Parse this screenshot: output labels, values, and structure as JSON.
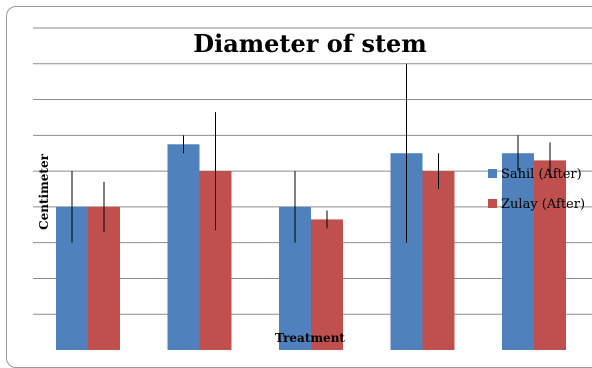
{
  "chart_data": {
    "type": "bar",
    "title": "Diameter of stem",
    "xlabel": "Treatment",
    "ylabel": "Centimeter",
    "categories": [
      "",
      "",
      "",
      "",
      ""
    ],
    "ylim": [
      0,
      9
    ],
    "gridlines": 9,
    "legend_position": "right",
    "series": [
      {
        "name": "Sahil (After)",
        "color": "#4f81bd",
        "values": [
          4.0,
          5.75,
          4.0,
          5.5,
          5.5
        ],
        "error": [
          1.0,
          0.25,
          1.0,
          2.5,
          0.5
        ]
      },
      {
        "name": "Zulay (After)",
        "color": "#c0504d",
        "values": [
          4.0,
          5.0,
          3.65,
          5.0,
          5.3
        ],
        "error": [
          0.7,
          1.65,
          0.25,
          0.5,
          0.5
        ]
      }
    ]
  }
}
